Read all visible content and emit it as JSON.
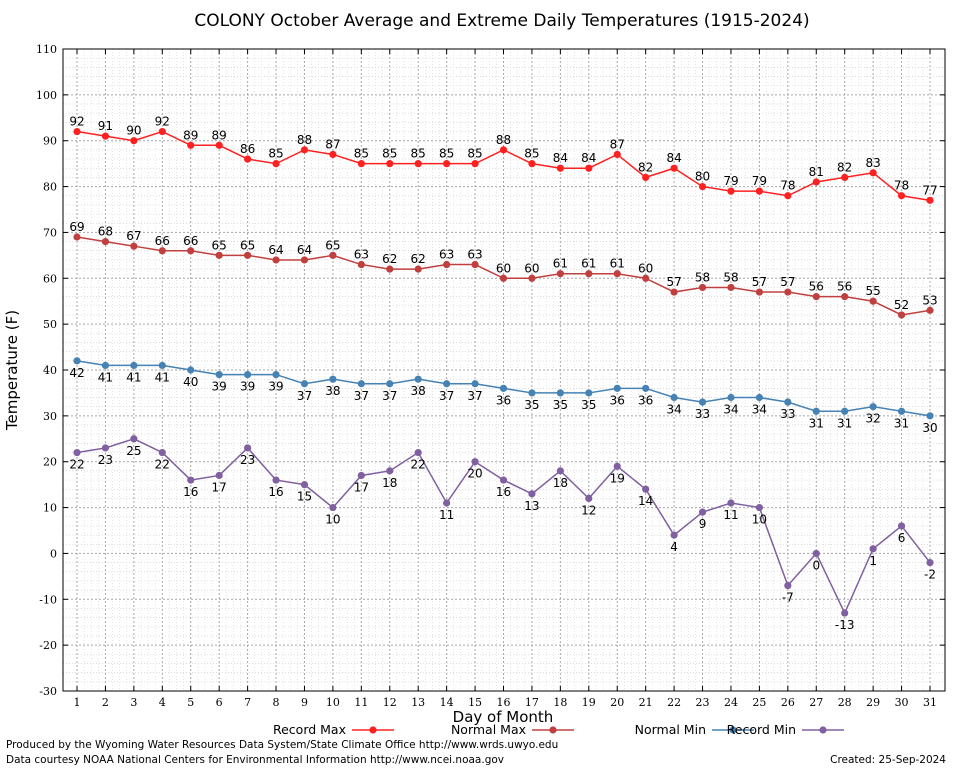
{
  "chart_data": {
    "type": "line",
    "title": "COLONY October Average and Extreme Daily Temperatures (1915-2024)",
    "xlabel": "Day of Month",
    "ylabel": "Temperature (F)",
    "ylim": [
      -30,
      110
    ],
    "yticks": [
      -30,
      -20,
      -10,
      0,
      10,
      20,
      30,
      40,
      50,
      60,
      70,
      80,
      90,
      100,
      110
    ],
    "x": [
      1,
      2,
      3,
      4,
      5,
      6,
      7,
      8,
      9,
      10,
      11,
      12,
      13,
      14,
      15,
      16,
      17,
      18,
      19,
      20,
      21,
      22,
      23,
      24,
      25,
      26,
      27,
      28,
      29,
      30,
      31
    ],
    "grid": true,
    "legend_position": "bottom",
    "series": [
      {
        "name": "Record Max",
        "color": "#ff2020",
        "label_position": "above",
        "values": [
          92,
          91,
          90,
          92,
          89,
          89,
          86,
          85,
          88,
          87,
          85,
          85,
          85,
          85,
          85,
          88,
          85,
          84,
          84,
          87,
          82,
          84,
          80,
          79,
          79,
          78,
          81,
          82,
          83,
          78,
          77
        ]
      },
      {
        "name": "Normal Max",
        "color": "#c04040",
        "label_position": "above",
        "values": [
          69,
          68,
          67,
          66,
          66,
          65,
          65,
          64,
          64,
          65,
          63,
          62,
          62,
          63,
          63,
          60,
          60,
          61,
          61,
          61,
          60,
          57,
          58,
          58,
          57,
          57,
          56,
          56,
          55,
          52,
          53
        ]
      },
      {
        "name": "Normal Min",
        "color": "#4682b4",
        "label_position": "below",
        "values": [
          42,
          41,
          41,
          41,
          40,
          39,
          39,
          39,
          37,
          38,
          37,
          37,
          38,
          37,
          37,
          36,
          35,
          35,
          35,
          36,
          36,
          34,
          33,
          34,
          34,
          33,
          31,
          31,
          32,
          31,
          30
        ]
      },
      {
        "name": "Record Min",
        "color": "#8060a0",
        "label_position": "below",
        "values": [
          22,
          23,
          25,
          22,
          16,
          17,
          23,
          16,
          15,
          10,
          17,
          18,
          22,
          11,
          20,
          16,
          13,
          18,
          12,
          19,
          14,
          4,
          9,
          11,
          10,
          -7,
          0,
          -13,
          1,
          6,
          -2
        ]
      }
    ]
  },
  "footer": {
    "produced_by": "Produced by the Wyoming Water Resources Data System/State Climate Office http://www.wrds.uwyo.edu",
    "courtesy": "Data courtesy NOAA National Centers for Environmental Information http://www.ncei.noaa.gov",
    "created": "Created:  25-Sep-2024"
  }
}
